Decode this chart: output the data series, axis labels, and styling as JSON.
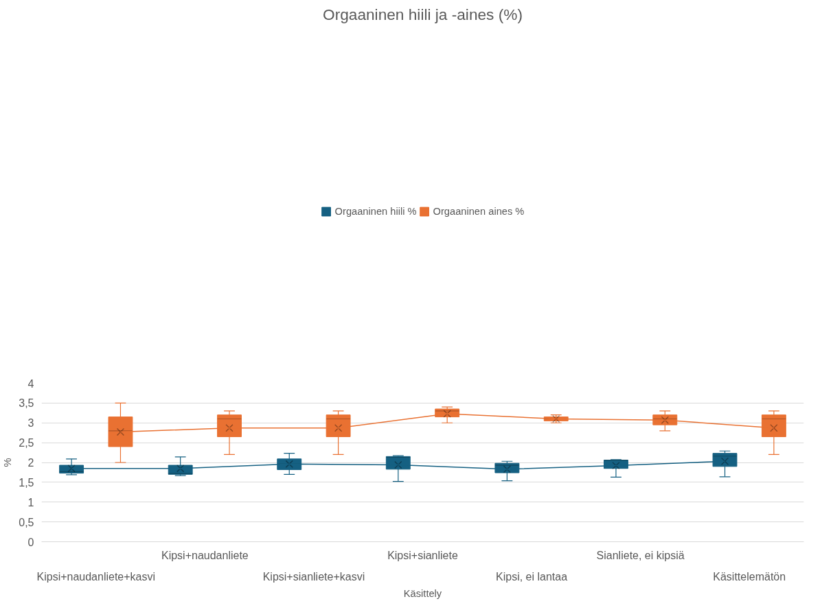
{
  "chart_data": {
    "type": "box",
    "title": "Orgaaninen hiili ja -aines (%)",
    "xlabel": "Käsittely",
    "ylabel": "%",
    "categories": [
      "Kipsi+naudanliete+kasvi",
      "Kipsi+naudanliete",
      "Kipsi+sianliete+kasvi",
      "Kipsi+sianliete",
      "Kipsi, ei lantaa",
      "Sianliete, ei kipsiä",
      "Käsittelemätön"
    ],
    "ylim": [
      0,
      4
    ],
    "yticks": [
      0,
      {
        "value": 0.5,
        "label": "0,5"
      },
      1,
      {
        "value": 1.5,
        "label": "1,5"
      },
      2,
      {
        "value": 2.5,
        "label": "2,5"
      },
      3,
      {
        "value": 3.5,
        "label": "3,5"
      },
      4
    ],
    "grid": "y",
    "legend": "top",
    "series": [
      {
        "name": "Orgaaninen hiili %",
        "color": "#156082",
        "boxes": [
          {
            "low": 1.69,
            "q1": 1.73,
            "median": 1.77,
            "q3": 1.93,
            "high": 2.09,
            "mean": 1.85
          },
          {
            "low": 1.67,
            "q1": 1.7,
            "median": 1.72,
            "q3": 1.93,
            "high": 2.14,
            "mean": 1.85
          },
          {
            "low": 1.7,
            "q1": 1.82,
            "median": 1.96,
            "q3": 2.09,
            "high": 2.23,
            "mean": 1.96
          },
          {
            "low": 1.52,
            "q1": 1.83,
            "median": 2.13,
            "q3": 2.15,
            "high": 2.17,
            "mean": 1.94
          },
          {
            "low": 1.54,
            "q1": 1.74,
            "median": 1.93,
            "q3": 1.98,
            "high": 2.03,
            "mean": 1.83
          },
          {
            "low": 1.63,
            "q1": 1.85,
            "median": 2.06,
            "q3": 2.06,
            "high": 2.07,
            "mean": 1.92
          },
          {
            "low": 1.64,
            "q1": 1.9,
            "median": 2.16,
            "q3": 2.23,
            "high": 2.29,
            "mean": 2.03
          }
        ]
      },
      {
        "name": "Orgaaninen aines %",
        "color": "#e97132",
        "boxes": [
          {
            "low": 2.0,
            "q1": 2.4,
            "median": 2.8,
            "q3": 3.15,
            "high": 3.5,
            "mean": 2.77
          },
          {
            "low": 2.2,
            "q1": 2.65,
            "median": 3.1,
            "q3": 3.2,
            "high": 3.3,
            "mean": 2.87
          },
          {
            "low": 2.2,
            "q1": 2.65,
            "median": 3.1,
            "q3": 3.2,
            "high": 3.3,
            "mean": 2.87
          },
          {
            "low": 3.0,
            "q1": 3.15,
            "median": 3.3,
            "q3": 3.35,
            "high": 3.4,
            "mean": 3.23
          },
          {
            "low": 3.0,
            "q1": 3.05,
            "median": 3.1,
            "q3": 3.15,
            "high": 3.2,
            "mean": 3.1
          },
          {
            "low": 2.8,
            "q1": 2.95,
            "median": 3.1,
            "q3": 3.2,
            "high": 3.3,
            "mean": 3.07
          },
          {
            "low": 2.2,
            "q1": 2.65,
            "median": 3.1,
            "q3": 3.2,
            "high": 3.3,
            "mean": 2.87
          }
        ]
      },
      {
        "type": "line",
        "color": "#156082",
        "values": [
          1.85,
          1.85,
          1.96,
          1.94,
          1.83,
          1.92,
          2.03
        ]
      },
      {
        "type": "line",
        "color": "#e97132",
        "values": [
          2.77,
          2.87,
          2.87,
          3.23,
          3.1,
          3.07,
          2.87
        ]
      }
    ]
  }
}
